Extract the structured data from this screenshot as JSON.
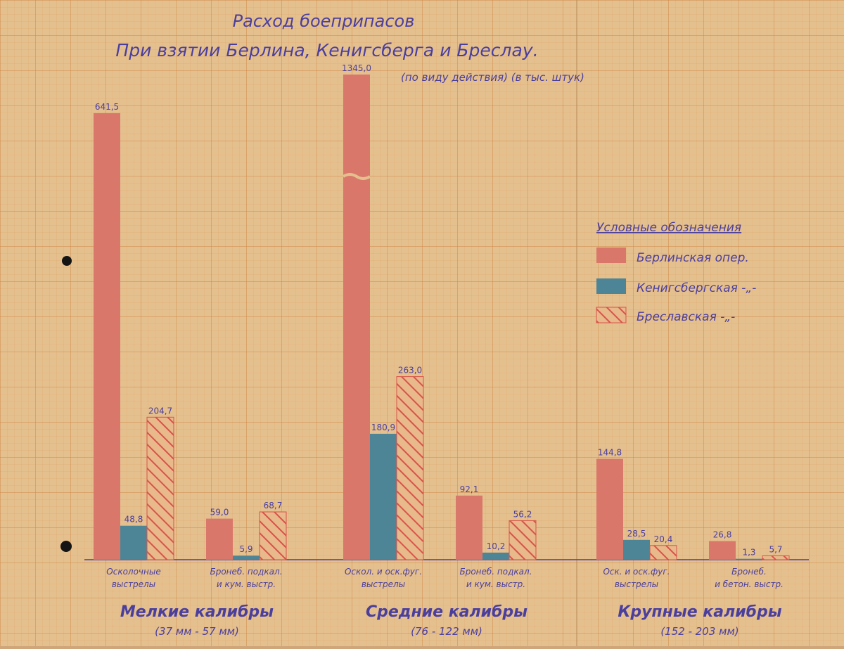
{
  "chart_data": {
    "type": "bar",
    "title": "Расход боеприпасов",
    "subtitle": "При взятии Берлина, Кенигсберга и Бреслау.",
    "units_note": "(по виду действия) (в тыс. штук)",
    "legend_title": "Условные обозначения",
    "legend_position": "right",
    "grid": true,
    "series": [
      {
        "name": "Берлинская опер.",
        "color": "#d9786a",
        "pattern": "solid"
      },
      {
        "name": "Кенигсбергская -„-",
        "color": "#4e8596",
        "pattern": "solid"
      },
      {
        "name": "Бреславская -„-",
        "color": "#d9786a",
        "pattern": "hatched"
      }
    ],
    "groups": [
      {
        "label": "Мелкие калибры",
        "sublabel": "(37 мм - 57 мм)",
        "categories": [
          {
            "label_lines": [
              "Осколочные",
              "выстрелы"
            ],
            "values": [
              641.5,
              48.8,
              204.7
            ],
            "value_labels": [
              "641,5",
              "48,8",
              "204,7"
            ]
          },
          {
            "label_lines": [
              "Бронеб. подкал.",
              "и кум. выстр."
            ],
            "values": [
              59.0,
              5.9,
              68.7
            ],
            "value_labels": [
              "59,0",
              "5,9",
              "68,7"
            ]
          }
        ]
      },
      {
        "label": "Средние калибры",
        "sublabel": "(76 - 122 мм)",
        "categories": [
          {
            "label_lines": [
              "Оскол. и оск.фуг.",
              "выстрелы"
            ],
            "values": [
              1345.0,
              180.9,
              263.0
            ],
            "value_labels": [
              "1345,0",
              "180,9",
              "263,0"
            ]
          },
          {
            "label_lines": [
              "Бронеб. подкал.",
              "и кум. выстр."
            ],
            "values": [
              92.1,
              10.2,
              56.2
            ],
            "value_labels": [
              "92,1",
              "10,2",
              "56,2"
            ]
          }
        ]
      },
      {
        "label": "Крупные калибры",
        "sublabel": "(152 - 203 мм)",
        "categories": [
          {
            "label_lines": [
              "Оск. и оск.фуг.",
              "выстрелы"
            ],
            "values": [
              144.8,
              28.5,
              20.4
            ],
            "value_labels": [
              "144,8",
              "28,5",
              "20,4"
            ]
          },
          {
            "label_lines": [
              "Бронеб.",
              "и бетон. выстр."
            ],
            "values": [
              26.8,
              1.3,
              5.7
            ],
            "value_labels": [
              "26,8",
              "1,3",
              "5,7"
            ]
          }
        ]
      }
    ]
  }
}
